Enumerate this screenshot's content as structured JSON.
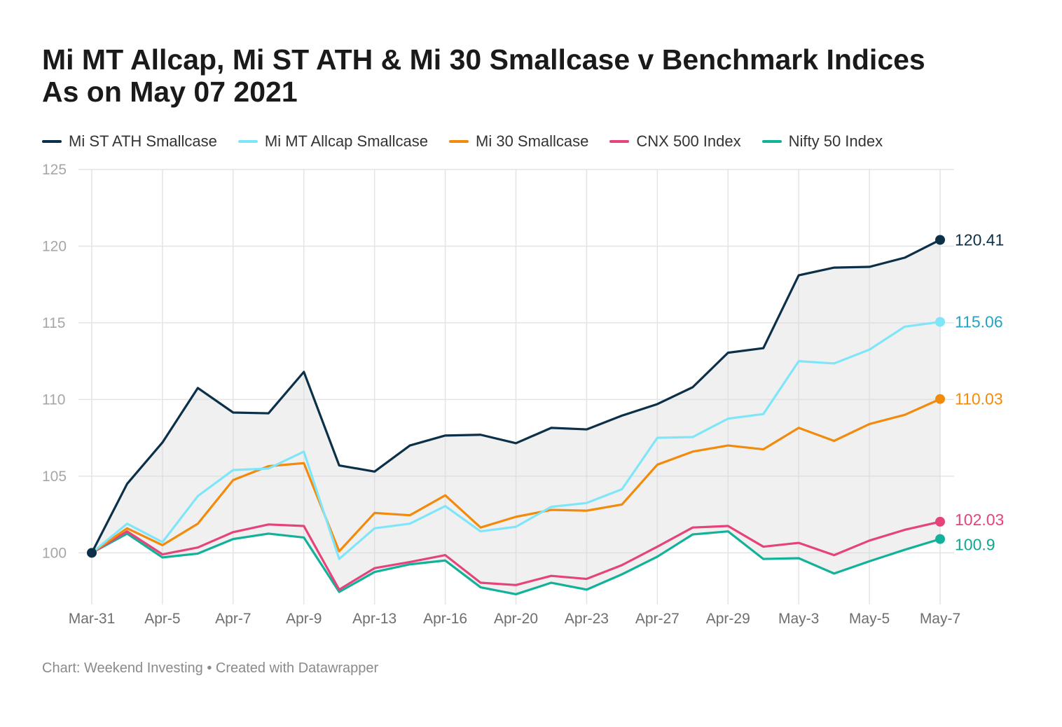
{
  "title_line1": "Mi MT Allcap, Mi ST ATH & Mi 30 Smallcase v Benchmark Indices",
  "title_line2": "As on May 07 2021",
  "footer": "Chart: Weekend Investing • Created with Datawrapper",
  "chart_data": {
    "type": "line",
    "x": [
      "Mar-31",
      "Apr-1",
      "Apr-5",
      "Apr-6",
      "Apr-7",
      "Apr-8",
      "Apr-9",
      "Apr-12",
      "Apr-13",
      "Apr-15",
      "Apr-16",
      "Apr-19",
      "Apr-20",
      "Apr-22",
      "Apr-23",
      "Apr-26",
      "Apr-27",
      "Apr-28",
      "Apr-29",
      "Apr-30",
      "May-3",
      "May-4",
      "May-5",
      "May-6",
      "May-7"
    ],
    "x_tick_labels": [
      "Mar-31",
      "Apr-5",
      "Apr-7",
      "Apr-9",
      "Apr-13",
      "Apr-16",
      "Apr-20",
      "Apr-23",
      "Apr-27",
      "Apr-29",
      "May-3",
      "May-5",
      "May-7"
    ],
    "y_ticks": [
      100,
      105,
      110,
      115,
      120,
      125
    ],
    "ylim": [
      97.0,
      125
    ],
    "grid": true,
    "legend_position": "top-left",
    "series": [
      {
        "name": "Mi ST ATH Smallcase",
        "color": "#0b3048",
        "end_label": "120.41",
        "values": [
          100,
          104.5,
          107.2,
          110.75,
          109.15,
          109.1,
          111.8,
          105.7,
          105.3,
          107.0,
          107.65,
          107.7,
          107.15,
          108.15,
          108.05,
          108.95,
          109.7,
          110.8,
          113.05,
          113.35,
          118.1,
          118.6,
          118.65,
          119.25,
          120.41
        ]
      },
      {
        "name": "Mi MT Allcap Smallcase",
        "color": "#7fe6fa",
        "label_color": "#27a3c0",
        "end_label": "115.06",
        "values": [
          100,
          101.9,
          100.7,
          103.7,
          105.4,
          105.5,
          106.6,
          99.6,
          101.6,
          101.9,
          103.05,
          101.4,
          101.7,
          103.0,
          103.25,
          104.15,
          107.5,
          107.55,
          108.75,
          109.05,
          112.5,
          112.35,
          113.25,
          114.75,
          115.06
        ]
      },
      {
        "name": "Mi 30 Smallcase",
        "color": "#f28b0c",
        "label_color": "#f28b0c",
        "end_label": "110.03",
        "values": [
          100,
          101.6,
          100.5,
          101.9,
          104.75,
          105.65,
          105.85,
          100.1,
          102.6,
          102.45,
          103.75,
          101.65,
          102.35,
          102.8,
          102.75,
          103.15,
          105.75,
          106.6,
          107.0,
          106.75,
          108.15,
          107.3,
          108.4,
          109.0,
          110.03
        ]
      },
      {
        "name": "CNX 500 Index",
        "color": "#e5447a",
        "label_color": "#e5447a",
        "end_label": "102.03",
        "values": [
          100,
          101.4,
          99.9,
          100.35,
          101.35,
          101.85,
          101.75,
          97.6,
          99.0,
          99.4,
          99.85,
          98.05,
          97.9,
          98.5,
          98.3,
          99.2,
          100.4,
          101.65,
          101.75,
          100.4,
          100.65,
          99.85,
          100.8,
          101.5,
          102.03
        ]
      },
      {
        "name": "Nifty 50 Index",
        "color": "#12b29a",
        "label_color": "#12a58f",
        "end_label": "100.9",
        "values": [
          100,
          101.25,
          99.7,
          99.95,
          100.9,
          101.25,
          101.0,
          97.45,
          98.75,
          99.25,
          99.5,
          97.75,
          97.3,
          98.05,
          97.6,
          98.6,
          99.75,
          101.2,
          101.4,
          99.6,
          99.65,
          98.65,
          99.45,
          100.2,
          100.9
        ]
      }
    ]
  }
}
